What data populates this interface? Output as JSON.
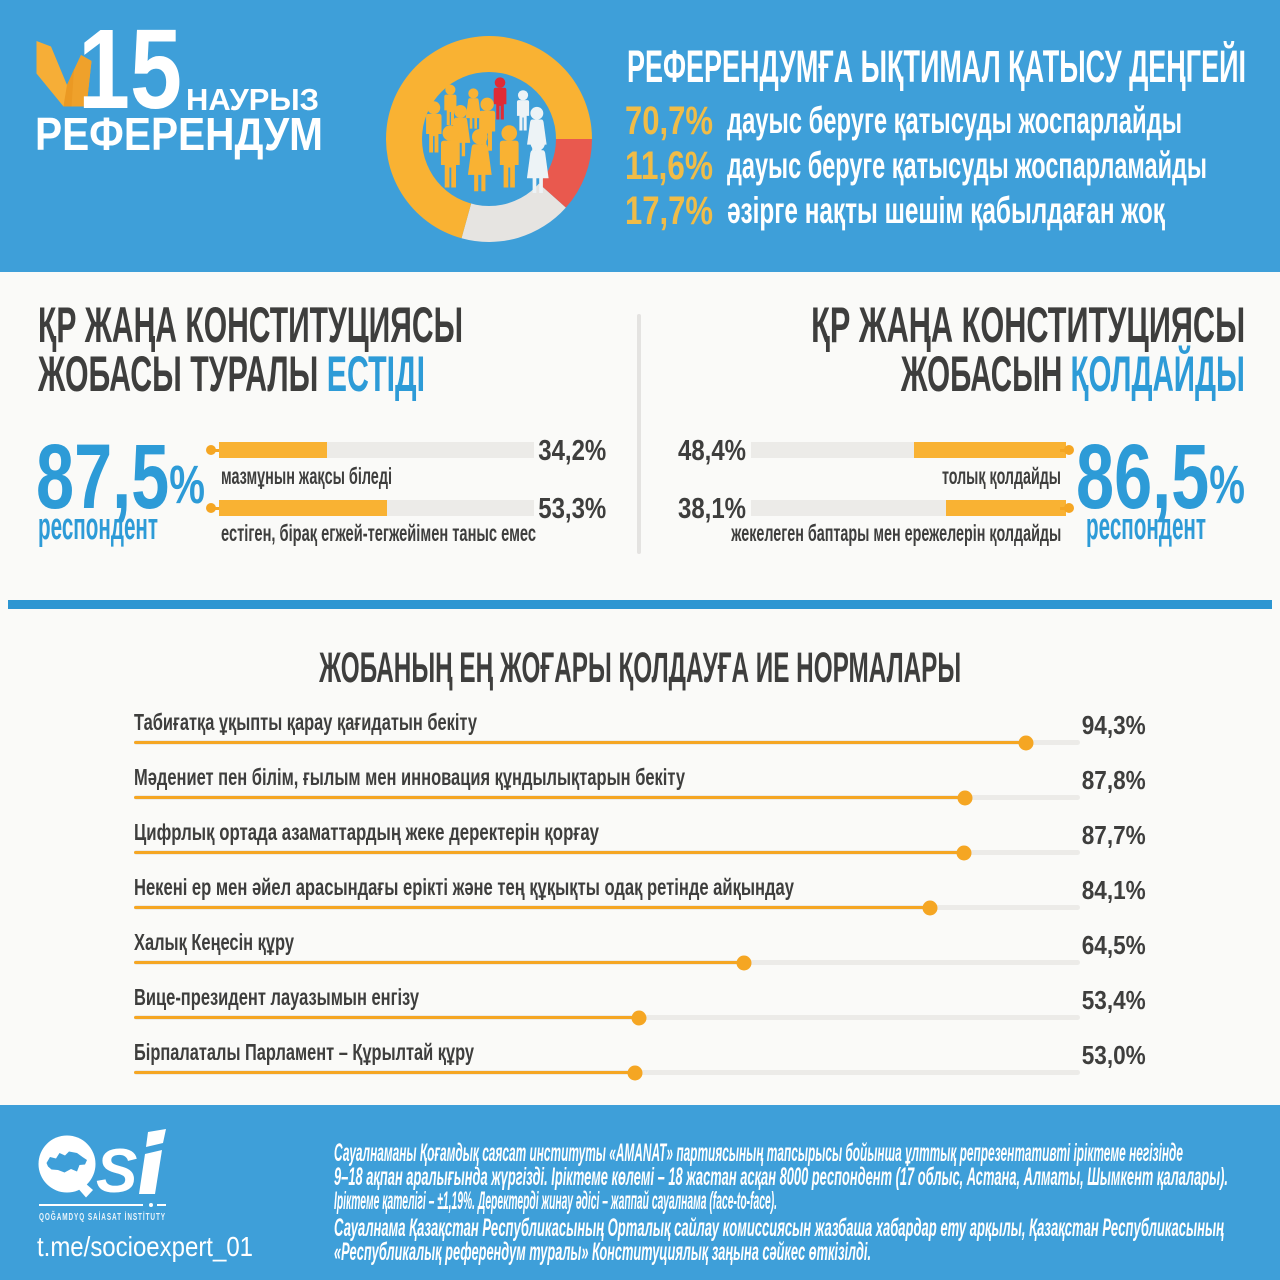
{
  "colors": {
    "blue_bg": "#3E9FD9",
    "blue_band": "#2D96D2",
    "blue_accent": "#2D9BD7",
    "panel_bg": "#FAFAF8",
    "track": "#ECEBE8",
    "divider": "#E4E3E1",
    "dark": "#3E3E3D",
    "yellow": "#F9B233",
    "yellow_text": "#F0BC47",
    "red": "#E9594E",
    "donut_gray": "#E6E4E1",
    "dot": "#F5A623"
  },
  "header": {
    "logo": {
      "day": "15",
      "month": "НАУРЫЗ",
      "word": "РЕФЕРЕНДУМ"
    }
  },
  "sections": {
    "heard": {
      "title_line1": "ҚР ЖАҢА КОНСТИТУЦИЯСЫ",
      "title_line2_plain": "ЖОБАСЫ ТУРАЛЫ",
      "title_line2_accent": "ЕСТІДІ"
    },
    "support": {
      "title_line1": "ҚР ЖАҢА КОНСТИТУЦИЯСЫ",
      "title_line2_plain": "ЖОБАСЫН",
      "title_line2_accent": "ҚОЛДАЙДЫ"
    }
  },
  "footer": {
    "brand": "QSİ",
    "brand_s_letter": "S",
    "org_name": "QOĞAMDYQ SAİASAT İNSTİTUTY",
    "telegram": "t.me/socioexpert_01",
    "note_par1": [
      "Сауалнаманы Қоғамдық саясат институты «AMANAT» партиясының тапсырысы бойынша ұлттық репрезентативті іріктеме негізінде",
      "9–18 ақпан аралығында жүргізді. Іріктеме көлемі – 18 жастан асқан 8000 респондент (17 облыс, Астана, Алматы, Шымкент қалалары).",
      "Іріктеме қателігі – ±1,19%. Деректерді жинау әдісі – жаппай сауалнама (face-to-face)."
    ],
    "note_par2": [
      "Сауалнама Қазақстан Республикасының Орталық сайлау комиссиясын жазбаша хабардар ету арқылы, Қазақстан Республикасының",
      "«Республикалық референдум туралы» Конституциялық заңына сәйкес өткізілді."
    ]
  },
  "chart_data": [
    {
      "id": "turnout_donut",
      "type": "pie",
      "title": "РЕФЕРЕНДУМҒА ЫҚТИМАЛ ҚАТЫСУ ДЕҢГЕЙІ",
      "slices": [
        {
          "label": "дауыс беруге қатысуды жоспарлайды",
          "value": 70.7,
          "display": "70,7%",
          "color_key": "yellow"
        },
        {
          "label": "дауыс беруге қатысуды жоспарламайды",
          "value": 11.6,
          "display": "11,6%",
          "color_key": "red"
        },
        {
          "label": "әзірге нақты шешім қабылдаған жоқ",
          "value": 17.7,
          "display": "17,7%",
          "color_key": "donut_gray"
        }
      ],
      "render": {
        "start_deg": 90,
        "order": [
          1,
          2,
          0
        ]
      }
    },
    {
      "id": "heard_bars",
      "type": "bar",
      "direction": "ltr",
      "xlim": [
        0,
        100
      ],
      "stat": {
        "display": "87,5",
        "unit": "%",
        "caption": "респондент"
      },
      "rows": [
        {
          "label": "мазмұнын жақсы біледі",
          "value": 34.2,
          "display": "34,2%"
        },
        {
          "label": "естіген, бірақ егжей-тегжейімен таныс емес",
          "value": 53.3,
          "display": "53,3%"
        }
      ]
    },
    {
      "id": "support_bars",
      "type": "bar",
      "direction": "rtl",
      "xlim": [
        0,
        100
      ],
      "stat": {
        "display": "86,5",
        "unit": "%",
        "caption": "респондент"
      },
      "rows": [
        {
          "label": "толық қолдайды",
          "value": 48.4,
          "display": "48,4%"
        },
        {
          "label": "жекелеген баптары мен ережелерін қолдайды",
          "value": 38.1,
          "display": "38,1%"
        }
      ]
    },
    {
      "id": "norms",
      "type": "bar",
      "title": "ЖОБАНЫҢ ЕҢ ЖОҒАРЫ ҚОЛДАУҒА ИЕ НОРМАЛАРЫ",
      "xlim": [
        0,
        100
      ],
      "rows": [
        {
          "label": "Табиғатқа ұқыпты қарау қағидатын бекіту",
          "value": 94.3,
          "display": "94,3%"
        },
        {
          "label": "Мәдениет пен білім, ғылым мен инновация құндылықтарын бекіту",
          "value": 87.8,
          "display": "87,8%"
        },
        {
          "label": "Цифрлық ортада азаматтардың жеке деректерін қорғау",
          "value": 87.7,
          "display": "87,7%"
        },
        {
          "label": "Некені ер мен әйел арасындағы ерікті және тең құқықты одақ ретінде айқындау",
          "value": 84.1,
          "display": "84,1%"
        },
        {
          "label": "Халық Кеңесін құру",
          "value": 64.5,
          "display": "64,5%"
        },
        {
          "label": "Вице-президент лауазымын енгізу",
          "value": 53.4,
          "display": "53,4%"
        },
        {
          "label": "Бірпалаталы Парламент – Құрылтай құру",
          "value": 53.0,
          "display": "53,0%"
        }
      ]
    }
  ]
}
